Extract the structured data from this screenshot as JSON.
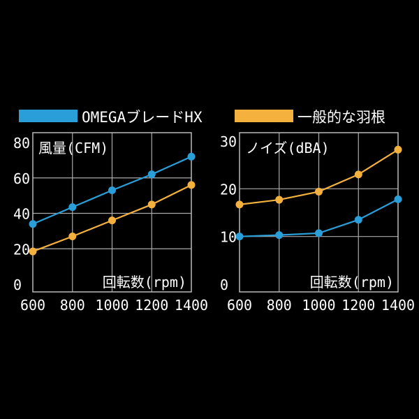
{
  "legend": [
    {
      "label": "OMEGAブレードHX",
      "color": "#2a9ed8"
    },
    {
      "label": "一般的な羽根",
      "color": "#f4b13e"
    }
  ],
  "chart_data": [
    {
      "type": "line",
      "title": "風量(CFM)",
      "xlabel": "回転数(rpm)",
      "ylabel": "",
      "x": [
        600,
        800,
        1000,
        1200,
        1400
      ],
      "xlim": [
        600,
        1400
      ],
      "ylim": [
        0,
        80
      ],
      "yticks": [
        0,
        20,
        40,
        60,
        80
      ],
      "grid": true,
      "series": [
        {
          "name": "OMEGAブレードHX",
          "color": "#2a9ed8",
          "values": [
            34,
            43.5,
            53,
            62,
            72
          ]
        },
        {
          "name": "一般的な羽根",
          "color": "#f4b13e",
          "values": [
            18.5,
            27,
            36,
            45,
            56
          ]
        }
      ]
    },
    {
      "type": "line",
      "title": "ノイズ(dBA)",
      "xlabel": "回転数(rpm)",
      "ylabel": "",
      "x": [
        600,
        800,
        1000,
        1200,
        1400
      ],
      "xlim": [
        600,
        1400
      ],
      "ylim": [
        0,
        30
      ],
      "yticks": [
        0,
        10,
        20,
        30
      ],
      "grid": true,
      "series": [
        {
          "name": "OMEGAブレードHX",
          "color": "#2a9ed8",
          "values": [
            10,
            10.3,
            10.7,
            13.5,
            17.8
          ]
        },
        {
          "name": "一般的な羽根",
          "color": "#f4b13e",
          "values": [
            16.7,
            17.7,
            19.4,
            23,
            28.2
          ]
        }
      ]
    }
  ]
}
